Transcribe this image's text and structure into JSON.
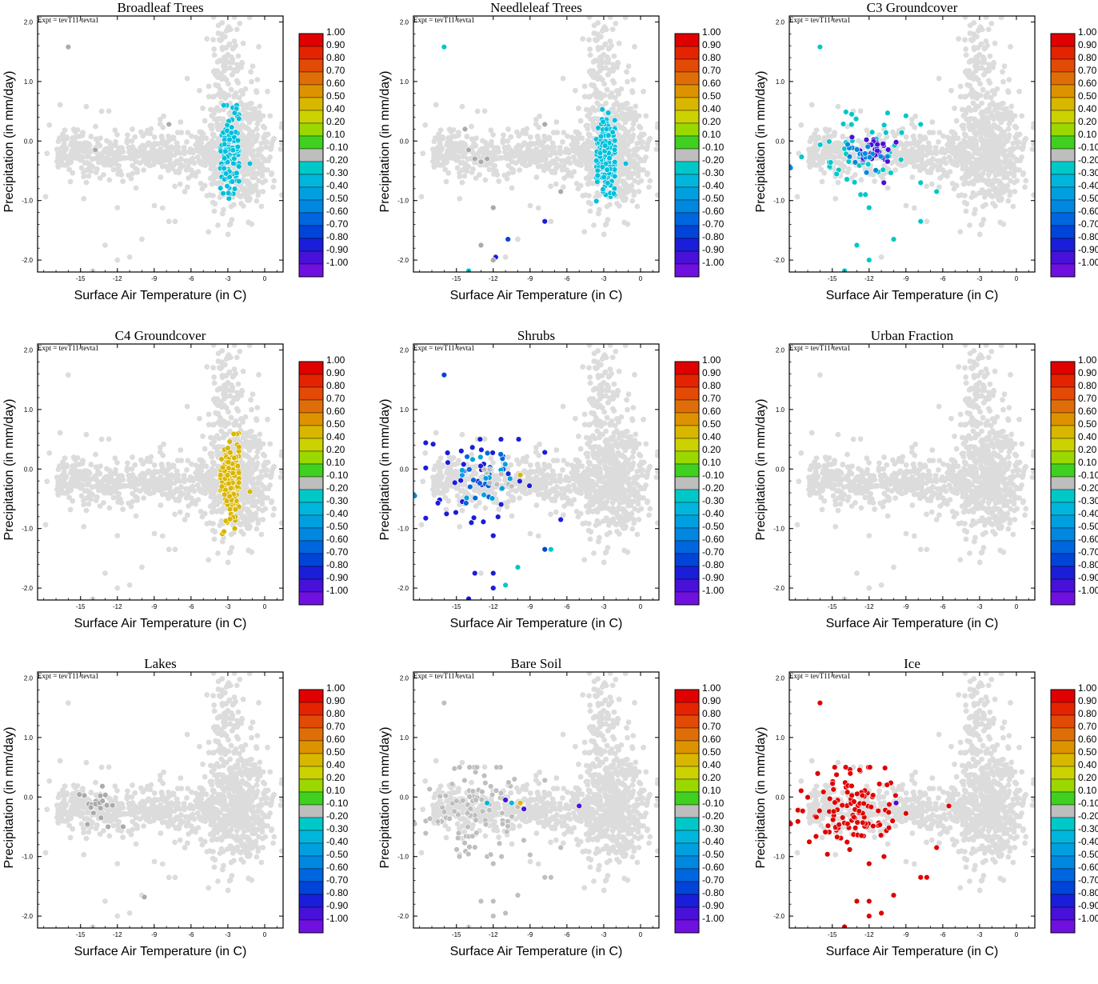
{
  "figure": {
    "expt_label": "Expt = tevT11-tevta1",
    "xlabel": "Surface Air Temperature (in C)",
    "ylabel": "Precipitation (in mm/day)"
  },
  "colorbar": {
    "levels": [
      {
        "label": "1.00",
        "color": "#e00000"
      },
      {
        "label": "0.90",
        "color": "#e42400"
      },
      {
        "label": "0.80",
        "color": "#e34a06"
      },
      {
        "label": "0.70",
        "color": "#e06e08"
      },
      {
        "label": "0.60",
        "color": "#dd9300"
      },
      {
        "label": "0.50",
        "color": "#d9b600"
      },
      {
        "label": "0.40",
        "color": "#ccd200"
      },
      {
        "label": "0.20",
        "color": "#9ad800"
      },
      {
        "label": "0.10",
        "color": "#3fd020"
      },
      {
        "label": "-0.10",
        "color": "#bebebe"
      },
      {
        "label": "-0.20",
        "color": "#00c8c8"
      },
      {
        "label": "-0.30",
        "color": "#00b6dc"
      },
      {
        "label": "-0.40",
        "color": "#00a0e0"
      },
      {
        "label": "-0.50",
        "color": "#0088e0"
      },
      {
        "label": "-0.60",
        "color": "#0066e0"
      },
      {
        "label": "-0.70",
        "color": "#0044d8"
      },
      {
        "label": "-0.80",
        "color": "#1a1ed8"
      },
      {
        "label": "-0.90",
        "color": "#4810d8"
      },
      {
        "label": "-1.00",
        "color": "#7010e0"
      }
    ]
  },
  "chart_data": [
    {
      "type": "scatter",
      "title": "Broadleaf Trees",
      "xlabel": "Surface Air Temperature (in C)",
      "ylabel": "Precipitation (in mm/day)",
      "xlim": [
        -18.5,
        1.5
      ],
      "ylim": [
        -2.2,
        2.1
      ],
      "xticks": [
        -15,
        -12,
        -9,
        -6,
        -3,
        0
      ],
      "yticks": [
        -2.0,
        -1.0,
        0.0,
        1.0,
        2.0
      ],
      "background_color": "#dcdcdc",
      "highlight": [
        {
          "color": "#00c0dc",
          "center": [
            -2.8,
            -0.2
          ],
          "spread": [
            0.45,
            0.33
          ],
          "count": 160,
          "x_range": [
            -3.6,
            -2.1
          ],
          "y_range": [
            -1.1,
            0.6
          ]
        }
      ],
      "points": [
        {
          "x": -16.0,
          "y": 1.58,
          "color": "#aaaaaa"
        },
        {
          "x": -7.8,
          "y": 0.28,
          "color": "#aaaaaa"
        },
        {
          "x": -13.8,
          "y": -0.15,
          "color": "#aaaaaa"
        },
        {
          "x": -1.2,
          "y": -0.38,
          "color": "#00c0dc"
        }
      ]
    },
    {
      "type": "scatter",
      "title": "Needleleaf Trees",
      "xlabel": "Surface Air Temperature (in C)",
      "ylabel": "Precipitation (in mm/day)",
      "xlim": [
        -18.5,
        1.5
      ],
      "ylim": [
        -2.2,
        2.1
      ],
      "xticks": [
        -15,
        -12,
        -9,
        -6,
        -3,
        0
      ],
      "yticks": [
        -2.0,
        -1.0,
        0.0,
        1.0,
        2.0
      ],
      "background_color": "#dcdcdc",
      "highlight": [
        {
          "color": "#00c0dc",
          "center": [
            -2.8,
            -0.2
          ],
          "spread": [
            0.45,
            0.33
          ],
          "count": 160,
          "x_range": [
            -3.6,
            -2.1
          ],
          "y_range": [
            -1.1,
            0.6
          ]
        }
      ],
      "points": [
        {
          "x": -16.0,
          "y": 1.58,
          "color": "#00c8c8"
        },
        {
          "x": -1.2,
          "y": -0.38,
          "color": "#00c0dc"
        },
        {
          "x": -10.8,
          "y": -1.65,
          "color": "#0044d8"
        },
        {
          "x": -11.8,
          "y": -1.95,
          "color": "#1a1ed8"
        },
        {
          "x": -7.8,
          "y": -1.35,
          "color": "#1a1ed8"
        },
        {
          "x": -14.0,
          "y": -2.2,
          "color": "#00c8c8"
        },
        {
          "x": -12.0,
          "y": -2.0,
          "color": "#aaaaaa"
        },
        {
          "x": -13.0,
          "y": -1.75,
          "color": "#aaaaaa"
        },
        {
          "x": -12.0,
          "y": -1.12,
          "color": "#aaaaaa"
        },
        {
          "x": -13.5,
          "y": -0.3,
          "color": "#aaaaaa"
        },
        {
          "x": -13.0,
          "y": -0.35,
          "color": "#aaaaaa"
        },
        {
          "x": -12.5,
          "y": -0.3,
          "color": "#aaaaaa"
        },
        {
          "x": -14.3,
          "y": 0.2,
          "color": "#aaaaaa"
        },
        {
          "x": -14.0,
          "y": -0.15,
          "color": "#aaaaaa"
        },
        {
          "x": -7.8,
          "y": 0.28,
          "color": "#aaaaaa"
        },
        {
          "x": -6.5,
          "y": -0.85,
          "color": "#aaaaaa"
        }
      ]
    },
    {
      "type": "scatter",
      "title": "C3 Groundcover",
      "xlabel": "Surface Air Temperature (in C)",
      "ylabel": "Precipitation (in mm/day)",
      "xlim": [
        -18.5,
        1.5
      ],
      "ylim": [
        -2.2,
        2.1
      ],
      "xticks": [
        -15,
        -12,
        -9,
        -6,
        -3,
        0
      ],
      "yticks": [
        -2.0,
        -1.0,
        0.0,
        1.0,
        2.0
      ],
      "background_color": "#dcdcdc",
      "highlight": [
        {
          "color": "#00c8c8",
          "center": [
            -13.0,
            -0.1
          ],
          "spread": [
            1.8,
            0.35
          ],
          "count": 45,
          "x_range": [
            -17.5,
            -9.0
          ],
          "y_range": [
            -0.9,
            0.5
          ]
        },
        {
          "color": "#4810d8",
          "center": [
            -11.8,
            -0.15
          ],
          "spread": [
            0.9,
            0.12
          ],
          "count": 28,
          "x_range": [
            -13.5,
            -9.8
          ],
          "y_range": [
            -0.45,
            0.08
          ]
        },
        {
          "color": "#0088e0",
          "center": [
            -12.5,
            -0.25
          ],
          "spread": [
            0.9,
            0.15
          ],
          "count": 18,
          "x_range": [
            -14.0,
            -10.5
          ],
          "y_range": [
            -0.6,
            0.1
          ]
        }
      ],
      "points": [
        {
          "x": -16.0,
          "y": 1.58,
          "color": "#00c8c8"
        },
        {
          "x": -12.0,
          "y": -1.12,
          "color": "#00c8c8"
        },
        {
          "x": -13.0,
          "y": -1.75,
          "color": "#00c8c8"
        },
        {
          "x": -12.0,
          "y": -2.0,
          "color": "#00c8c8"
        },
        {
          "x": -14.0,
          "y": -2.2,
          "color": "#00c8c8"
        },
        {
          "x": -7.8,
          "y": -1.35,
          "color": "#00c8c8"
        },
        {
          "x": -10.0,
          "y": -1.65,
          "color": "#00c8c8"
        },
        {
          "x": -7.8,
          "y": 0.28,
          "color": "#00c8c8"
        },
        {
          "x": -6.5,
          "y": -0.85,
          "color": "#00c8c8"
        },
        {
          "x": -18.5,
          "y": -0.45,
          "color": "#0088e0"
        },
        {
          "x": -10.8,
          "y": -0.7,
          "color": "#4810d8"
        },
        {
          "x": -9.8,
          "y": -0.02,
          "color": "#4810d8"
        },
        {
          "x": -7.8,
          "y": -0.7,
          "color": "#00c8c8"
        }
      ]
    },
    {
      "type": "scatter",
      "title": "C4 Groundcover",
      "xlabel": "Surface Air Temperature (in C)",
      "ylabel": "Precipitation (in mm/day)",
      "xlim": [
        -18.5,
        1.5
      ],
      "ylim": [
        -2.2,
        2.1
      ],
      "xticks": [
        -15,
        -12,
        -9,
        -6,
        -3,
        0
      ],
      "yticks": [
        -2.0,
        -1.0,
        0.0,
        1.0,
        2.0
      ],
      "background_color": "#dcdcdc",
      "highlight": [
        {
          "color": "#d9b600",
          "center": [
            -2.8,
            -0.2
          ],
          "spread": [
            0.45,
            0.33
          ],
          "count": 160,
          "x_range": [
            -3.6,
            -2.1
          ],
          "y_range": [
            -1.1,
            0.6
          ]
        }
      ],
      "points": [
        {
          "x": -1.2,
          "y": -0.38,
          "color": "#d9b600"
        }
      ]
    },
    {
      "type": "scatter",
      "title": "Shrubs",
      "xlabel": "Surface Air Temperature (in C)",
      "ylabel": "Precipitation (in mm/day)",
      "xlim": [
        -18.5,
        1.5
      ],
      "ylim": [
        -2.2,
        2.1
      ],
      "xticks": [
        -15,
        -12,
        -9,
        -6,
        -3,
        0
      ],
      "yticks": [
        -2.0,
        -1.0,
        0.0,
        1.0,
        2.0
      ],
      "background_color": "#dcdcdc",
      "highlight": [
        {
          "color": "#1a1ed8",
          "center": [
            -13.5,
            -0.1
          ],
          "spread": [
            2.0,
            0.4
          ],
          "count": 40,
          "x_range": [
            -17.5,
            -9.0
          ],
          "y_range": [
            -0.9,
            0.5
          ]
        },
        {
          "color": "#0066e0",
          "center": [
            -13.0,
            -0.2
          ],
          "spread": [
            1.2,
            0.25
          ],
          "count": 18,
          "x_range": [
            -16.0,
            -10.0
          ],
          "y_range": [
            -0.8,
            0.3
          ]
        },
        {
          "color": "#00a0e0",
          "center": [
            -12.5,
            -0.2
          ],
          "spread": [
            1.0,
            0.18
          ],
          "count": 14,
          "x_range": [
            -15.0,
            -10.0
          ],
          "y_range": [
            -0.6,
            0.2
          ]
        },
        {
          "color": "#bebebe",
          "center": [
            -11.8,
            -0.25
          ],
          "spread": [
            0.8,
            0.15
          ],
          "count": 8,
          "x_range": [
            -13.5,
            -10.0
          ],
          "y_range": [
            -0.7,
            0.1
          ]
        }
      ],
      "points": [
        {
          "x": -16.0,
          "y": 1.58,
          "color": "#0044d8"
        },
        {
          "x": -9.8,
          "y": -0.1,
          "color": "#d9b600"
        },
        {
          "x": -10.0,
          "y": -1.65,
          "color": "#00c8c8"
        },
        {
          "x": -11.0,
          "y": -1.95,
          "color": "#00c8c8"
        },
        {
          "x": -7.8,
          "y": -1.35,
          "color": "#0044d8"
        },
        {
          "x": -7.3,
          "y": -1.35,
          "color": "#00c8c8"
        },
        {
          "x": -13.5,
          "y": -1.75,
          "color": "#1a1ed8"
        },
        {
          "x": -12.0,
          "y": -1.75,
          "color": "#1a1ed8"
        },
        {
          "x": -12.0,
          "y": -2.0,
          "color": "#1a1ed8"
        },
        {
          "x": -14.0,
          "y": -2.2,
          "color": "#1a1ed8"
        },
        {
          "x": -12.0,
          "y": -1.12,
          "color": "#1a1ed8"
        },
        {
          "x": -6.5,
          "y": -0.85,
          "color": "#1a1ed8"
        },
        {
          "x": -7.8,
          "y": 0.28,
          "color": "#1a1ed8"
        },
        {
          "x": -18.5,
          "y": -0.45,
          "color": "#0088e0"
        }
      ]
    },
    {
      "type": "scatter",
      "title": "Urban Fraction",
      "xlabel": "Surface Air Temperature (in C)",
      "ylabel": "Precipitation (in mm/day)",
      "xlim": [
        -18.5,
        1.5
      ],
      "ylim": [
        -2.2,
        2.1
      ],
      "xticks": [
        -15,
        -12,
        -9,
        -6,
        -3,
        0
      ],
      "yticks": [
        -2.0,
        -1.0,
        0.0,
        1.0,
        2.0
      ],
      "background_color": "#dcdcdc",
      "highlight": [],
      "points": []
    },
    {
      "type": "scatter",
      "title": "Lakes",
      "xlabel": "Surface Air Temperature (in C)",
      "ylabel": "Precipitation (in mm/day)",
      "xlim": [
        -18.5,
        1.5
      ],
      "ylim": [
        -2.2,
        2.1
      ],
      "xticks": [
        -15,
        -12,
        -9,
        -6,
        -3,
        0
      ],
      "yticks": [
        -2.0,
        -1.0,
        0.0,
        1.0,
        2.0
      ],
      "background_color": "#dcdcdc",
      "highlight": [
        {
          "color": "#aaaaaa",
          "center": [
            -13.5,
            -0.2
          ],
          "spread": [
            1.1,
            0.2
          ],
          "count": 22,
          "x_range": [
            -15.8,
            -11.5
          ],
          "y_range": [
            -0.5,
            0.45
          ]
        }
      ],
      "points": [
        {
          "x": -9.8,
          "y": -1.68,
          "color": "#aaaaaa"
        }
      ]
    },
    {
      "type": "scatter",
      "title": "Bare Soil",
      "xlabel": "Surface Air Temperature (in C)",
      "ylabel": "Precipitation (in mm/day)",
      "xlim": [
        -18.5,
        1.5
      ],
      "ylim": [
        -2.2,
        2.1
      ],
      "xticks": [
        -15,
        -12,
        -9,
        -6,
        -3,
        0
      ],
      "yticks": [
        -2.0,
        -1.0,
        0.0,
        1.0,
        2.0
      ],
      "background_color": "#dcdcdc",
      "highlight": [
        {
          "color": "#bebebe",
          "center": [
            -13.5,
            -0.2
          ],
          "spread": [
            1.9,
            0.4
          ],
          "count": 95,
          "x_range": [
            -17.5,
            -9.0
          ],
          "y_range": [
            -1.0,
            0.5
          ]
        }
      ],
      "points": [
        {
          "x": -16.0,
          "y": 1.58,
          "color": "#bebebe"
        },
        {
          "x": -12.0,
          "y": -1.12,
          "color": "#bebebe"
        },
        {
          "x": -13.0,
          "y": -1.75,
          "color": "#bebebe"
        },
        {
          "x": -12.0,
          "y": -2.0,
          "color": "#bebebe"
        },
        {
          "x": -12.0,
          "y": -1.75,
          "color": "#bebebe"
        },
        {
          "x": -7.8,
          "y": -1.35,
          "color": "#bebebe"
        },
        {
          "x": -7.3,
          "y": -1.35,
          "color": "#bebebe"
        },
        {
          "x": -10.0,
          "y": -1.65,
          "color": "#bebebe"
        },
        {
          "x": -11.0,
          "y": -1.95,
          "color": "#bebebe"
        },
        {
          "x": -7.8,
          "y": 0.28,
          "color": "#bebebe"
        },
        {
          "x": -6.5,
          "y": -0.85,
          "color": "#bebebe"
        },
        {
          "x": -9.8,
          "y": -0.1,
          "color": "#d9b600"
        },
        {
          "x": -5.0,
          "y": -0.15,
          "color": "#4810d8"
        },
        {
          "x": -11.0,
          "y": -0.05,
          "color": "#4810d8"
        },
        {
          "x": -9.5,
          "y": -0.2,
          "color": "#4810d8"
        },
        {
          "x": -12.5,
          "y": -0.1,
          "color": "#00b6dc"
        },
        {
          "x": -10.5,
          "y": -0.1,
          "color": "#00b6dc"
        },
        {
          "x": -18.5,
          "y": -0.45,
          "color": "#bebebe"
        }
      ]
    },
    {
      "type": "scatter",
      "title": "Ice",
      "xlabel": "Surface Air Temperature (in C)",
      "ylabel": "Precipitation (in mm/day)",
      "xlim": [
        -18.5,
        1.5
      ],
      "ylim": [
        -2.2,
        2.1
      ],
      "xticks": [
        -15,
        -12,
        -9,
        -6,
        -3,
        0
      ],
      "yticks": [
        -2.0,
        -1.0,
        0.0,
        1.0,
        2.0
      ],
      "background_color": "#dcdcdc",
      "highlight": [
        {
          "color": "#e00000",
          "center": [
            -13.3,
            -0.2
          ],
          "spread": [
            1.9,
            0.4
          ],
          "count": 115,
          "x_range": [
            -17.8,
            -9.0
          ],
          "y_range": [
            -1.0,
            0.5
          ]
        }
      ],
      "points": [
        {
          "x": -16.0,
          "y": 1.58,
          "color": "#e00000"
        },
        {
          "x": -12.0,
          "y": -1.12,
          "color": "#e00000"
        },
        {
          "x": -13.0,
          "y": -1.75,
          "color": "#e00000"
        },
        {
          "x": -12.0,
          "y": -2.0,
          "color": "#e00000"
        },
        {
          "x": -12.0,
          "y": -1.75,
          "color": "#e00000"
        },
        {
          "x": -11.0,
          "y": -1.95,
          "color": "#e00000"
        },
        {
          "x": -10.0,
          "y": -1.65,
          "color": "#e00000"
        },
        {
          "x": -7.8,
          "y": -1.35,
          "color": "#e00000"
        },
        {
          "x": -7.3,
          "y": -1.35,
          "color": "#e00000"
        },
        {
          "x": -14.0,
          "y": -2.2,
          "color": "#e00000"
        },
        {
          "x": -6.5,
          "y": -0.85,
          "color": "#e00000"
        },
        {
          "x": -5.5,
          "y": -0.15,
          "color": "#e00000"
        },
        {
          "x": -18.5,
          "y": -0.45,
          "color": "#e00000"
        },
        {
          "x": -9.8,
          "y": -0.1,
          "color": "#4810d8"
        }
      ]
    }
  ]
}
